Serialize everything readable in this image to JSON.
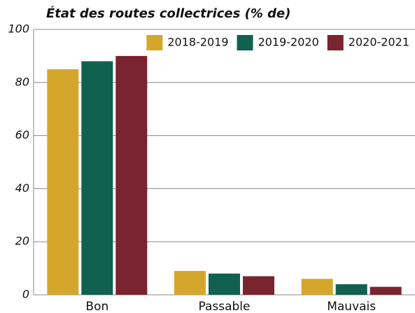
{
  "chart_data": {
    "type": "bar",
    "title": "État des routes collectrices (% de)",
    "categories": [
      "Bon",
      "Passable",
      "Mauvais"
    ],
    "series": [
      {
        "name": "2018-2019",
        "color": "#d4a72c",
        "values": [
          85,
          9,
          6
        ]
      },
      {
        "name": "2019-2020",
        "color": "#10614f",
        "values": [
          88,
          8,
          4
        ]
      },
      {
        "name": "2020-2021",
        "color": "#7a2430",
        "values": [
          90,
          7,
          3
        ]
      }
    ],
    "ylim": [
      0,
      100
    ],
    "yticks": [
      0,
      20,
      40,
      60,
      80,
      100
    ],
    "grid": true,
    "legend": "top-right"
  }
}
